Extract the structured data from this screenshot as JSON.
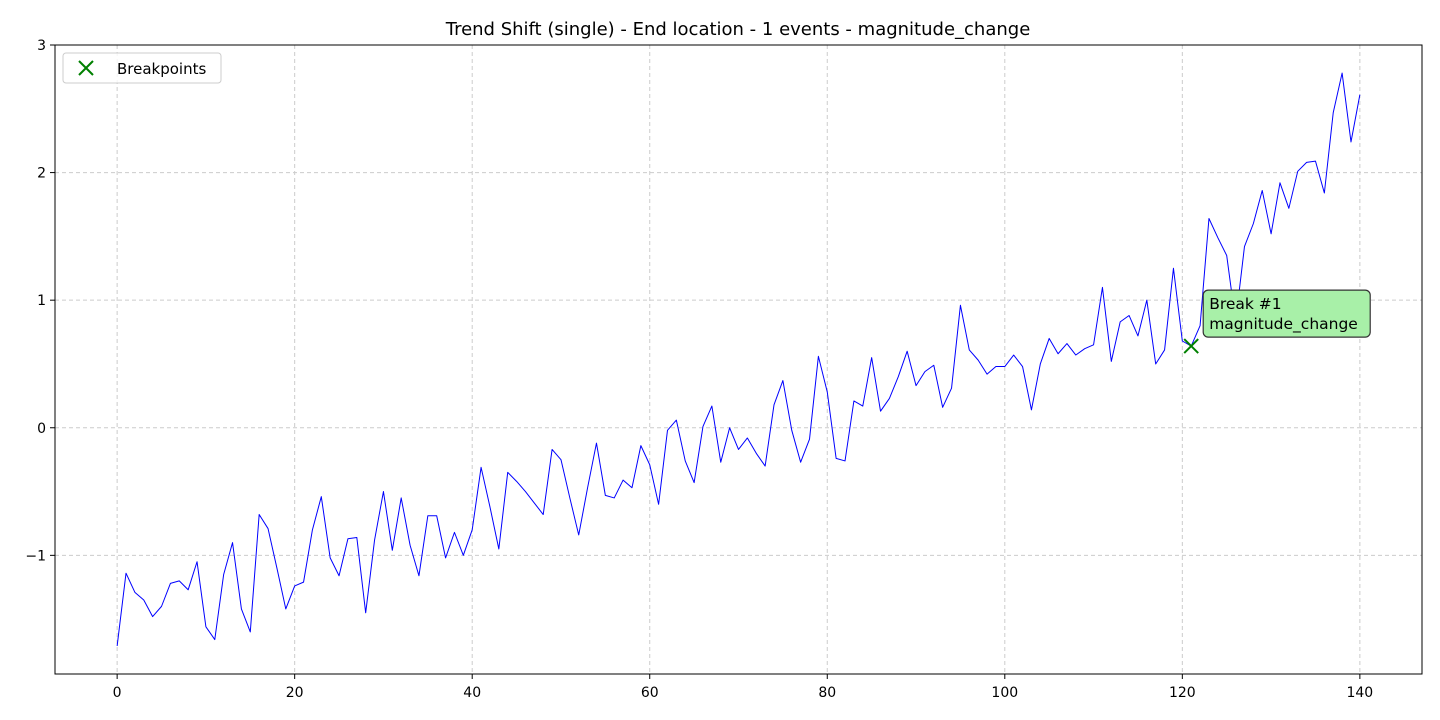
{
  "chart_data": {
    "type": "line",
    "title": "Trend Shift (single) - End location - 1 events - magnitude_change",
    "xlabel": "",
    "ylabel": "",
    "xlim": [
      -7,
      147
    ],
    "ylim": [
      -1.93,
      3.0
    ],
    "xticks": [
      0,
      20,
      40,
      60,
      80,
      100,
      120,
      140
    ],
    "yticks": [
      -1,
      0,
      1,
      2,
      3
    ],
    "ytick_labels": [
      "−1",
      "0",
      "1",
      "2",
      "3"
    ],
    "grid": true,
    "legend": {
      "position": "top-left",
      "entries": [
        {
          "label": "Breakpoints",
          "marker": "x",
          "color": "#008000"
        }
      ]
    },
    "series": [
      {
        "color": "#0000ff",
        "x_start": 0,
        "x_step": 1,
        "values": [
          -1.71,
          -1.14,
          -1.29,
          -1.35,
          -1.48,
          -1.4,
          -1.22,
          -1.2,
          -1.27,
          -1.05,
          -1.56,
          -1.66,
          -1.15,
          -0.9,
          -1.42,
          -1.6,
          -0.68,
          -0.79,
          -1.1,
          -1.42,
          -1.24,
          -1.21,
          -0.8,
          -0.54,
          -1.02,
          -1.16,
          -0.87,
          -0.86,
          -1.45,
          -0.88,
          -0.5,
          -0.96,
          -0.55,
          -0.92,
          -1.16,
          -0.69,
          -0.69,
          -1.02,
          -0.82,
          -1.0,
          -0.8,
          -0.31,
          -0.62,
          -0.95,
          -0.35,
          -0.42,
          -0.5,
          -0.59,
          -0.68,
          -0.17,
          -0.25,
          -0.55,
          -0.84,
          -0.47,
          -0.12,
          -0.53,
          -0.55,
          -0.41,
          -0.47,
          -0.14,
          -0.29,
          -0.6,
          -0.02,
          0.06,
          -0.26,
          -0.43,
          0.01,
          0.17,
          -0.27,
          0.0,
          -0.17,
          -0.08,
          -0.2,
          -0.3,
          0.18,
          0.37,
          -0.02,
          -0.27,
          -0.09,
          0.56,
          0.28,
          -0.24,
          -0.26,
          0.21,
          0.17,
          0.55,
          0.13,
          0.23,
          0.4,
          0.6,
          0.33,
          0.44,
          0.49,
          0.16,
          0.31,
          0.96,
          0.61,
          0.53,
          0.42,
          0.48,
          0.48,
          0.57,
          0.48,
          0.14,
          0.5,
          0.7,
          0.58,
          0.66,
          0.57,
          0.62,
          0.65,
          1.1,
          0.52,
          0.83,
          0.88,
          0.72,
          1.0,
          0.5,
          0.61,
          1.25,
          0.68,
          0.64,
          0.8,
          1.64,
          1.49,
          1.35,
          0.83,
          1.42,
          1.6,
          1.86,
          1.52,
          1.92,
          1.72,
          2.01,
          2.08,
          2.09,
          1.84,
          2.47,
          2.78,
          2.24,
          2.61
        ]
      }
    ],
    "breakpoints": [
      {
        "x": 121,
        "y": 0.64,
        "label_line1": "Break #1",
        "label_line2": "magnitude_change"
      }
    ]
  }
}
